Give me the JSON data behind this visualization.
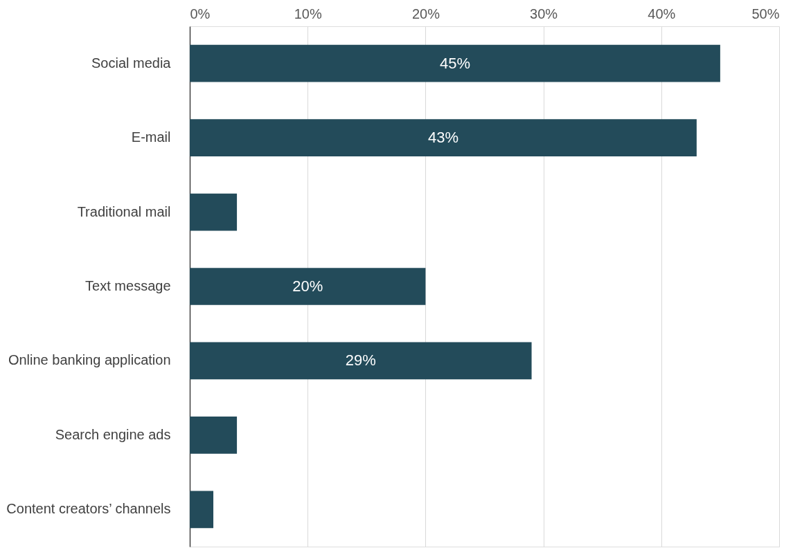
{
  "chart_data": {
    "type": "bar",
    "orientation": "horizontal",
    "categories": [
      "Social media",
      "E-mail",
      "Traditional mail",
      "Text message",
      "Online banking application",
      "Search engine ads",
      "Content creators’ channels"
    ],
    "values": [
      45,
      43,
      4,
      20,
      29,
      4,
      2
    ],
    "value_labels": [
      "45%",
      "43%",
      null,
      "20%",
      "29%",
      null,
      null
    ],
    "color": "#234b5a",
    "xlim": [
      0,
      50
    ],
    "xticks": [
      {
        "value": 0,
        "label": "0%"
      },
      {
        "value": 10,
        "label": "10%"
      },
      {
        "value": 20,
        "label": "20%"
      },
      {
        "value": 30,
        "label": "30%"
      },
      {
        "value": 40,
        "label": "40%"
      },
      {
        "value": 50,
        "label": "50%"
      }
    ],
    "grid": "x"
  }
}
